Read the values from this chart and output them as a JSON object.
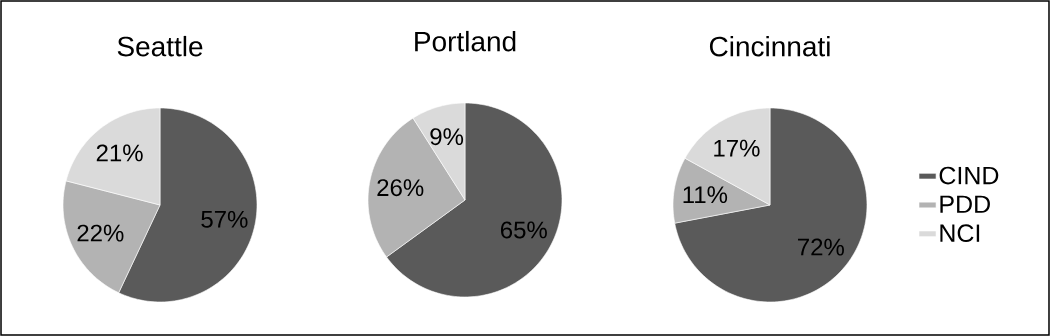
{
  "chart_data": [
    {
      "type": "pie",
      "title": "Seattle",
      "categories": [
        null,
        null,
        null
      ],
      "values": [
        57,
        22,
        21
      ],
      "value_labels": [
        "57%",
        "22%",
        "21%"
      ],
      "colors": [
        "#5a5a5a",
        "#b3b3b3",
        "#dadada"
      ],
      "legend": false
    },
    {
      "type": "pie",
      "title": "Portland",
      "categories": [
        null,
        null,
        null
      ],
      "values": [
        65,
        26,
        9
      ],
      "value_labels": [
        "65%",
        "26%",
        "9%"
      ],
      "colors": [
        "#5a5a5a",
        "#b3b3b3",
        "#dadada"
      ],
      "legend": false
    },
    {
      "type": "pie",
      "title": "Cincinnati",
      "categories": [
        "CIND",
        "PDD",
        "NCI"
      ],
      "values": [
        72,
        11,
        17
      ],
      "value_labels": [
        "72%",
        "11%",
        "17%"
      ],
      "colors": [
        "#5a5a5a",
        "#b3b3b3",
        "#dadada"
      ],
      "legend": "right"
    }
  ]
}
